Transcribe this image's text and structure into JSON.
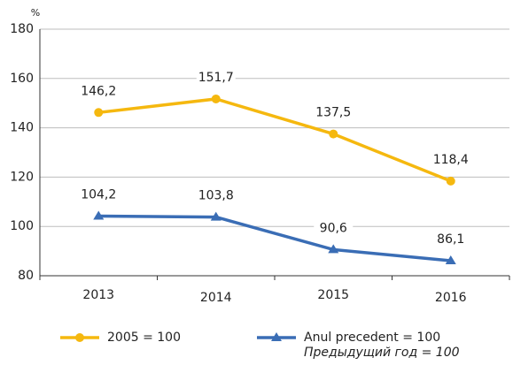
{
  "chart_data": {
    "type": "line",
    "y_unit": "%",
    "categories": [
      "2013",
      "2014",
      "2015",
      "2016"
    ],
    "series": [
      {
        "name": "2005 = 100",
        "color": "#f5b80f",
        "marker": "circle",
        "values": [
          146.2,
          151.7,
          137.5,
          118.4
        ],
        "value_labels": [
          "146,2",
          "151,7",
          "137,5",
          "118,4"
        ]
      },
      {
        "name": "Anul precedent = 100",
        "subname": "Предыдущий год = 100",
        "color": "#3a6db5",
        "marker": "triangle",
        "values": [
          104.2,
          103.8,
          90.6,
          86.1
        ],
        "value_labels": [
          "104,2",
          "103,8",
          "90,6",
          "86,1"
        ]
      }
    ],
    "ylim": [
      80,
      180
    ],
    "yticks": [
      80,
      100,
      120,
      140,
      160,
      180
    ],
    "grid": true
  }
}
